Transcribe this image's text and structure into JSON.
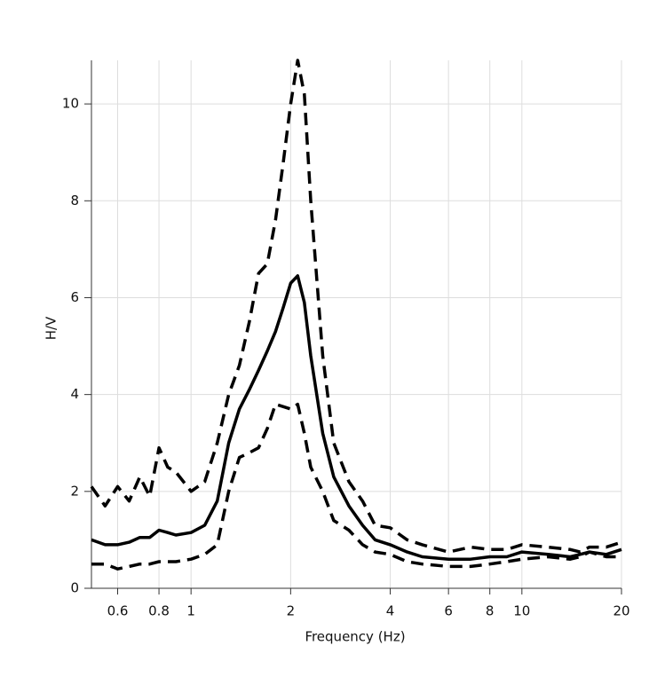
{
  "chart_data": {
    "type": "line",
    "x_label": "Frequency (Hz)",
    "y_label": "H/V",
    "x": [
      0.5,
      0.55,
      0.6,
      0.65,
      0.7,
      0.75,
      0.8,
      0.85,
      0.9,
      1,
      1.1,
      1.2,
      1.3,
      1.4,
      1.5,
      1.6,
      1.7,
      1.8,
      1.9,
      2,
      2.1,
      2.2,
      2.3,
      2.5,
      2.7,
      3,
      3.3,
      3.6,
      4,
      4.5,
      5,
      6,
      7,
      8,
      9,
      10,
      12,
      14,
      15,
      16,
      18,
      20
    ],
    "series": [
      {
        "color": "#000000",
        "style": "solid",
        "values": [
          1.0,
          0.9,
          0.9,
          0.95,
          1.05,
          1.05,
          1.2,
          1.15,
          1.1,
          1.15,
          1.3,
          1.8,
          3.0,
          3.7,
          4.1,
          4.5,
          4.9,
          5.3,
          5.8,
          6.3,
          6.45,
          5.9,
          4.8,
          3.2,
          2.3,
          1.7,
          1.3,
          1.0,
          0.9,
          0.75,
          0.65,
          0.6,
          0.6,
          0.65,
          0.65,
          0.75,
          0.7,
          0.65,
          0.7,
          0.75,
          0.7,
          0.8
        ]
      },
      {
        "color": "#000000",
        "style": "dashed",
        "values": [
          2.1,
          1.7,
          2.1,
          1.8,
          2.3,
          1.9,
          2.9,
          2.5,
          2.4,
          2.0,
          2.2,
          3.0,
          4.0,
          4.6,
          5.5,
          6.5,
          6.7,
          7.6,
          8.8,
          10.0,
          10.9,
          10.2,
          8.0,
          4.8,
          3.0,
          2.2,
          1.8,
          1.3,
          1.25,
          1.0,
          0.9,
          0.75,
          0.85,
          0.8,
          0.8,
          0.9,
          0.85,
          0.8,
          0.75,
          0.85,
          0.85,
          0.95
        ]
      },
      {
        "color": "#000000",
        "style": "dashed",
        "values": [
          0.5,
          0.5,
          0.4,
          0.45,
          0.5,
          0.5,
          0.55,
          0.55,
          0.55,
          0.6,
          0.7,
          0.9,
          2.0,
          2.7,
          2.8,
          2.9,
          3.3,
          3.8,
          3.75,
          3.7,
          3.8,
          3.2,
          2.5,
          2.0,
          1.4,
          1.2,
          0.9,
          0.75,
          0.7,
          0.55,
          0.5,
          0.45,
          0.45,
          0.5,
          0.55,
          0.6,
          0.65,
          0.6,
          0.65,
          0.75,
          0.65,
          0.65
        ]
      }
    ],
    "xscale": "log",
    "xlim": [
      0.5,
      20
    ],
    "xticks": [
      0.6,
      0.8,
      1,
      2,
      4,
      6,
      8,
      10,
      20
    ],
    "ylim": [
      0,
      10.9
    ],
    "yticks": [
      0,
      2,
      4,
      6,
      8,
      10
    ],
    "grid": true
  }
}
